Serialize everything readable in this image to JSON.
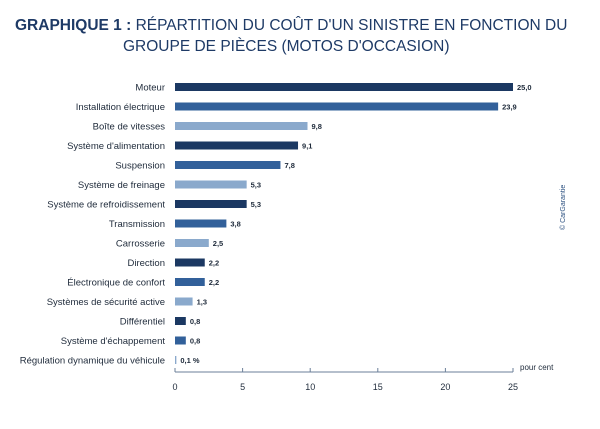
{
  "title": {
    "prefix": "GRAPHIQUE 1 :",
    "line1": "RÉPARTITION DU COÛT D'UN SINISTRE EN FONCTION DU",
    "line2": "GROUPE DE PIÈCES (MOTOS D'OCCASION)"
  },
  "source": "© CarGarantie",
  "colors": {
    "dark": "#1b3862",
    "medium": "#32609a",
    "light": "#8aa9cc",
    "axis": "#6b7f99",
    "text": "#1e2a3a"
  },
  "chart_data": {
    "type": "bar",
    "orientation": "horizontal",
    "categories": [
      "Moteur",
      "Installation électrique",
      "Boîte de vitesses",
      "Système d'alimentation",
      "Suspension",
      "Système de freinage",
      "Système de refroidissement",
      "Transmission",
      "Carrosserie",
      "Direction",
      "Électronique de confort",
      "Systèmes de sécurité active",
      "Différentiel",
      "Système d'échappement",
      "Régulation dynamique du véhicule"
    ],
    "values": [
      25.0,
      23.9,
      9.8,
      9.1,
      7.8,
      5.3,
      5.3,
      3.8,
      2.5,
      2.2,
      2.2,
      1.3,
      0.8,
      0.8,
      0.1
    ],
    "value_labels": [
      "25,0",
      "23,9",
      "9,8",
      "9,1",
      "7,8",
      "5,3",
      "5,3",
      "3,8",
      "2,5",
      "2,2",
      "2,2",
      "1,3",
      "0,8",
      "0,8",
      "0,1 %"
    ],
    "bar_shades": [
      "dark",
      "medium",
      "light",
      "dark",
      "medium",
      "light",
      "dark",
      "medium",
      "light",
      "dark",
      "medium",
      "light",
      "dark",
      "medium",
      "light"
    ],
    "x_ticks": [
      0,
      5,
      10,
      15,
      20,
      25
    ],
    "x_tick_labels": [
      "0",
      "5",
      "10",
      "15",
      "20",
      "25"
    ],
    "xlim": [
      0,
      25
    ],
    "xlabel": "pour cent",
    "ylabel": "",
    "grid": false
  }
}
